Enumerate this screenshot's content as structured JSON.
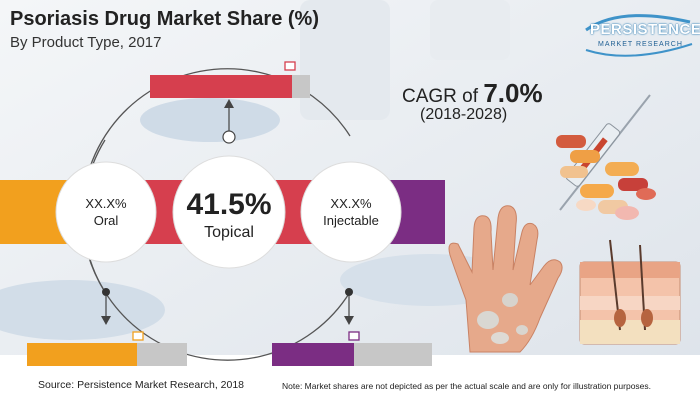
{
  "title": "Psoriasis Drug Market Share (%)",
  "subtitle": "By Product Type, 2017",
  "logo": {
    "main": "PERSISTENCE",
    "sub": "MARKET RESEARCH"
  },
  "cagr": {
    "prefix": "CAGR of ",
    "value": "7.0%",
    "period": "(2018-2028)"
  },
  "chart_data": {
    "type": "bar",
    "categories": [
      "Oral",
      "Topical",
      "Injectable"
    ],
    "value_labels": [
      "XX.X%",
      "41.5%",
      "XX.X%"
    ],
    "values": [
      null,
      41.5,
      null
    ],
    "colors": {
      "Oral": "#f2a01e",
      "Topical": "#d63f4e",
      "Injectable": "#7b2d83"
    }
  },
  "source": "Source: Persistence Market Research, 2018",
  "note": "Note: Market shares are not depicted as per the actual scale and are only for illustration purposes."
}
